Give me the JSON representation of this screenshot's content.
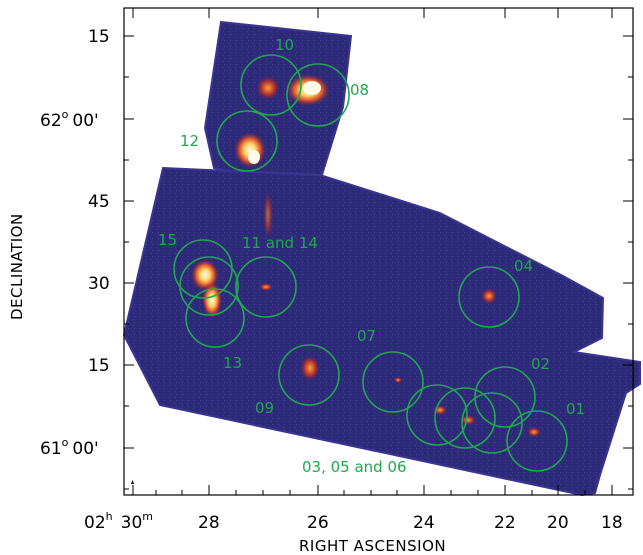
{
  "axes": {
    "x_title": "RIGHT ASCENSION",
    "y_title": "DECLINATION",
    "x_ticks": [
      {
        "label_h": "02",
        "unit_h": "h",
        "label_m": "30",
        "unit_m": "m"
      },
      {
        "label": "28"
      },
      {
        "label": "26"
      },
      {
        "label": "24"
      },
      {
        "label": "22"
      },
      {
        "label": "20"
      },
      {
        "label": "18"
      }
    ],
    "y_ticks": [
      {
        "label": "15"
      },
      {
        "deg": "62",
        "unit": "o",
        "min": "00'"
      },
      {
        "label": "45"
      },
      {
        "label": "30"
      },
      {
        "label": "15"
      },
      {
        "deg": "61",
        "unit": "o",
        "min": "00'"
      }
    ]
  },
  "regions": [
    {
      "id": "01",
      "label": "01"
    },
    {
      "id": "02",
      "label": "02"
    },
    {
      "id": "04",
      "label": "04"
    },
    {
      "id": "07",
      "label": "07"
    },
    {
      "id": "08",
      "label": "08"
    },
    {
      "id": "09",
      "label": "09"
    },
    {
      "id": "10",
      "label": "10"
    },
    {
      "id": "11-14",
      "label": "11 and 14"
    },
    {
      "id": "12",
      "label": "12"
    },
    {
      "id": "13",
      "label": "13"
    },
    {
      "id": "15",
      "label": "15"
    },
    {
      "id": "03-05-06",
      "label": "03, 05 and 06"
    }
  ],
  "colors": {
    "background_map": "#2e2a7a",
    "region_circle": "#1fa84f",
    "emission_hot": "#fff6c8",
    "emission_warm": "#f08a24",
    "emission_mid": "#b8322e"
  }
}
